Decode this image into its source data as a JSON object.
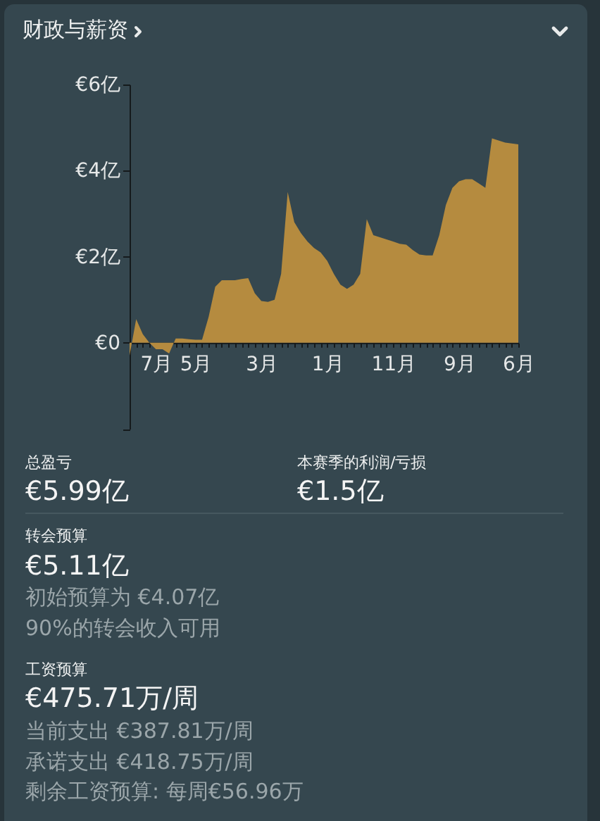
{
  "chart_data": [
    {
      "type": "area",
      "title": "财政与薪资",
      "categories": [
        null,
        null,
        null,
        null,
        "7月",
        null,
        null,
        null,
        null,
        null,
        "5月",
        null,
        null,
        null,
        null,
        null,
        null,
        null,
        null,
        null,
        "3月",
        null,
        null,
        null,
        null,
        null,
        null,
        null,
        null,
        null,
        "1月",
        null,
        null,
        null,
        null,
        null,
        null,
        null,
        null,
        null,
        "11月",
        null,
        null,
        null,
        null,
        null,
        null,
        null,
        null,
        null,
        "9月",
        null,
        null,
        null,
        null,
        null,
        null,
        null,
        null,
        "6月"
      ],
      "values": [
        -0.3,
        0.55,
        0.2,
        0.0,
        -0.15,
        -0.15,
        -0.25,
        0.1,
        0.1,
        0.08,
        0.07,
        0.07,
        0.6,
        1.3,
        1.45,
        1.45,
        1.45,
        1.48,
        1.5,
        1.15,
        0.97,
        0.95,
        1.0,
        1.6,
        3.5,
        2.8,
        2.55,
        2.35,
        2.2,
        2.1,
        1.9,
        1.6,
        1.35,
        1.25,
        1.35,
        1.6,
        2.87,
        2.5,
        2.45,
        2.4,
        2.35,
        2.3,
        2.28,
        2.15,
        2.05,
        2.03,
        2.03,
        2.5,
        3.2,
        3.6,
        3.75,
        3.8,
        3.8,
        3.7,
        3.6,
        4.75,
        4.7,
        4.65,
        4.63,
        4.61
      ],
      "color": "#b58b3f",
      "ylim": [
        -2,
        6
      ],
      "yticks": [
        {
          "value": -2,
          "label": null
        },
        {
          "value": 0,
          "label": "€0"
        },
        {
          "value": 2,
          "label": "€2亿"
        },
        {
          "value": 4,
          "label": "€4亿"
        },
        {
          "value": 6,
          "label": "€6亿"
        }
      ]
    },
    {
      "type": "other",
      "annotations": [
        "总盈亏",
        "€5.99亿",
        "本赛季的利润/亏损",
        "€1.5亿",
        "转会预算",
        "€5.11亿",
        "初始预算为 €4.07亿",
        "90%的转会收入可用",
        "工资预算",
        "€475.71万/周",
        "当前支出 €387.81万/周",
        "承诺支出 €418.75万/周",
        "剩余工资预算: 每周€56.96万"
      ]
    }
  ]
}
